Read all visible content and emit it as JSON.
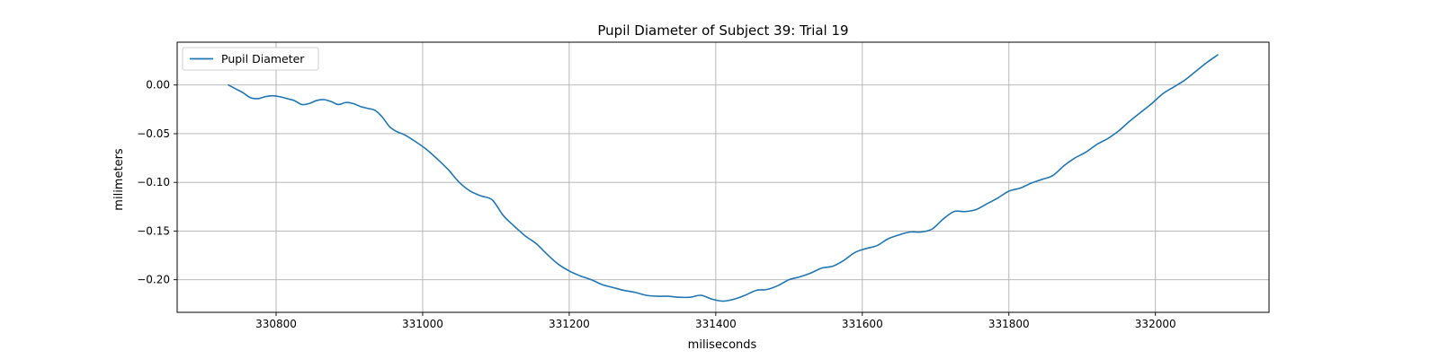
{
  "chart_data": {
    "type": "line",
    "title": "Pupil Diameter of Subject 39: Trial 19",
    "xlabel": "miliseconds",
    "ylabel": "milimeters",
    "xlim": [
      330665,
      332155
    ],
    "ylim": [
      -0.2335,
      0.044
    ],
    "xticks": [
      330800,
      331000,
      331200,
      331400,
      331600,
      331800,
      332000
    ],
    "xtick_labels": [
      "330800",
      "331000",
      "331200",
      "331400",
      "331600",
      "331800",
      "332000"
    ],
    "yticks": [
      0.0,
      -0.05,
      -0.1,
      -0.15,
      -0.2
    ],
    "ytick_labels": [
      "0.00",
      "−0.05",
      "−0.10",
      "−0.15",
      "−0.20"
    ],
    "grid": true,
    "legend_position": "upper-left",
    "series": [
      {
        "name": "Pupil Diameter",
        "color": "#1f77b4",
        "x": [
          330735,
          330745,
          330755,
          330765,
          330775,
          330785,
          330795,
          330805,
          330815,
          330825,
          330835,
          330845,
          330855,
          330865,
          330875,
          330885,
          330895,
          330905,
          330915,
          330925,
          330935,
          330945,
          330955,
          330965,
          330975,
          330990,
          331005,
          331020,
          331035,
          331050,
          331065,
          331080,
          331095,
          331110,
          331125,
          331140,
          331155,
          331170,
          331185,
          331200,
          331215,
          331230,
          331245,
          331260,
          331275,
          331290,
          331305,
          331320,
          331335,
          331350,
          331365,
          331380,
          331395,
          331410,
          331425,
          331440,
          331455,
          331470,
          331485,
          331500,
          331515,
          331530,
          331545,
          331560,
          331575,
          331590,
          331605,
          331620,
          331635,
          331650,
          331665,
          331680,
          331695,
          331710,
          331725,
          331740,
          331755,
          331770,
          331785,
          331800,
          331815,
          331830,
          331845,
          331860,
          331875,
          331890,
          331905,
          331920,
          331935,
          331950,
          331965,
          331980,
          331995,
          332010,
          332025,
          332040,
          332055,
          332070,
          332085
        ],
        "y": [
          0.0,
          -0.004,
          -0.008,
          -0.013,
          -0.014,
          -0.012,
          -0.011,
          -0.012,
          -0.014,
          -0.016,
          -0.02,
          -0.019,
          -0.016,
          -0.015,
          -0.017,
          -0.02,
          -0.018,
          -0.019,
          -0.022,
          -0.024,
          -0.026,
          -0.033,
          -0.043,
          -0.048,
          -0.051,
          -0.058,
          -0.066,
          -0.076,
          -0.087,
          -0.1,
          -0.109,
          -0.114,
          -0.118,
          -0.134,
          -0.145,
          -0.155,
          -0.163,
          -0.174,
          -0.184,
          -0.191,
          -0.196,
          -0.2,
          -0.205,
          -0.208,
          -0.211,
          -0.213,
          -0.216,
          -0.217,
          -0.217,
          -0.218,
          -0.218,
          -0.216,
          -0.22,
          -0.222,
          -0.22,
          -0.216,
          -0.211,
          -0.21,
          -0.206,
          -0.2,
          -0.197,
          -0.193,
          -0.188,
          -0.186,
          -0.18,
          -0.172,
          -0.168,
          -0.165,
          -0.158,
          -0.154,
          -0.151,
          -0.151,
          -0.148,
          -0.138,
          -0.13,
          -0.13,
          -0.128,
          -0.122,
          -0.116,
          -0.109,
          -0.106,
          -0.101,
          -0.097,
          -0.093,
          -0.083,
          -0.075,
          -0.069,
          -0.061,
          -0.055,
          -0.047,
          -0.037,
          -0.028,
          -0.019,
          -0.009,
          -0.002,
          0.005,
          0.014,
          0.023,
          0.031
        ]
      }
    ]
  }
}
